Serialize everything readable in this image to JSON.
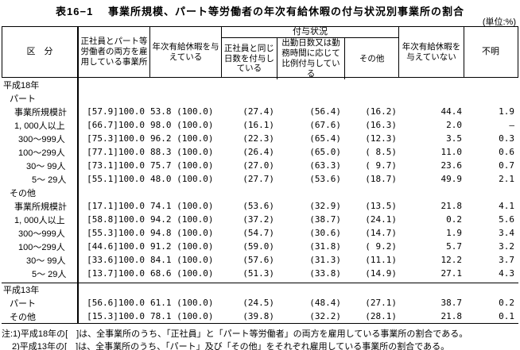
{
  "title": "表16−1　 事業所規模、パート等労働者の年次有給休暇の付与状況別事業所の割合",
  "unit_label": "(単位:%)",
  "table": {
    "headers": {
      "kubun": "区　分",
      "employing_both": "正社員とパート等労働者の両方を雇用している事業所",
      "granting_leave": "年次有給休暇を与えている",
      "grant_status_group": "付与状況",
      "same_days": "正社員と同じ日数を付与している",
      "proportional": "出勤日数又は勤務時間に応じて比例付与している",
      "other": "その他",
      "not_granting": "年次有給休暇を与えていない",
      "unknown": "不明"
    },
    "rows": [
      {
        "label": "平成18年",
        "indent": 0,
        "values": null,
        "section_break": false
      },
      {
        "label": "パート",
        "indent": 1,
        "values": null,
        "section_break": false
      },
      {
        "label": "事業所規模計",
        "indent": 2,
        "values": [
          "[57.9]100.0",
          "53.8 (100.0)",
          "(27.4)",
          "(56.4)",
          "(16.2)",
          "44.4",
          "1.9"
        ],
        "section_break": false
      },
      {
        "label": "1, 000人以上",
        "indent": 2,
        "values": [
          "[66.7]100.0",
          "98.0 (100.0)",
          "(16.1)",
          "(67.6)",
          "(16.3)",
          "2.0",
          "—"
        ],
        "section_break": false
      },
      {
        "label": "300〜999人",
        "indent": 3,
        "values": [
          "[75.3]100.0",
          "96.2 (100.0)",
          "(22.3)",
          "(65.4)",
          "(12.3)",
          "3.5",
          "0.3"
        ],
        "section_break": false
      },
      {
        "label": "100〜299人",
        "indent": 3,
        "values": [
          "[77.1]100.0",
          "88.3 (100.0)",
          "(26.4)",
          "(65.0)",
          "( 8.5)",
          "11.0",
          "0.6"
        ],
        "section_break": false
      },
      {
        "label": "30〜 99人",
        "indent": 4,
        "values": [
          "[73.1]100.0",
          "75.7 (100.0)",
          "(27.0)",
          "(63.3)",
          "( 9.7)",
          "23.6",
          "0.7"
        ],
        "section_break": false
      },
      {
        "label": "5〜 29人",
        "indent": 5,
        "values": [
          "[55.1]100.0",
          "48.0 (100.0)",
          "(27.7)",
          "(53.6)",
          "(18.7)",
          "49.9",
          "2.1"
        ],
        "section_break": false
      },
      {
        "label": "その他",
        "indent": 1,
        "values": null,
        "section_break": false
      },
      {
        "label": "事業所規模計",
        "indent": 2,
        "values": [
          "[17.1]100.0",
          "74.1 (100.0)",
          "(53.6)",
          "(32.9)",
          "(13.5)",
          "21.8",
          "4.1"
        ],
        "section_break": false
      },
      {
        "label": "1, 000人以上",
        "indent": 2,
        "values": [
          "[58.8]100.0",
          "94.2 (100.0)",
          "(37.2)",
          "(38.7)",
          "(24.1)",
          "0.2",
          "5.6"
        ],
        "section_break": false
      },
      {
        "label": "300〜999人",
        "indent": 3,
        "values": [
          "[55.3]100.0",
          "94.8 (100.0)",
          "(54.7)",
          "(30.6)",
          "(14.7)",
          "1.9",
          "3.4"
        ],
        "section_break": false
      },
      {
        "label": "100〜299人",
        "indent": 3,
        "values": [
          "[44.6]100.0",
          "91.2 (100.0)",
          "(59.0)",
          "(31.8)",
          "( 9.2)",
          "5.7",
          "3.2"
        ],
        "section_break": false
      },
      {
        "label": "30〜 99人",
        "indent": 4,
        "values": [
          "[33.6]100.0",
          "84.1 (100.0)",
          "(57.6)",
          "(31.3)",
          "(11.1)",
          "12.2",
          "3.7"
        ],
        "section_break": false
      },
      {
        "label": "5〜 29人",
        "indent": 5,
        "values": [
          "[13.7]100.0",
          "68.6 (100.0)",
          "(51.3)",
          "(33.8)",
          "(14.9)",
          "27.1",
          "4.3"
        ],
        "section_break": false
      },
      {
        "label": "平成13年",
        "indent": 0,
        "values": null,
        "section_break": true
      },
      {
        "label": "パート",
        "indent": 1,
        "values": [
          "[56.6]100.0",
          "61.1 (100.0)",
          "(24.5)",
          "(48.4)",
          "(27.1)",
          "38.7",
          "0.2"
        ],
        "section_break": false
      },
      {
        "label": "その他",
        "indent": 1,
        "values": [
          "[15.3]100.0",
          "78.1 (100.0)",
          "(39.8)",
          "(32.2)",
          "(28.1)",
          "21.8",
          "0.1"
        ],
        "section_break": false
      }
    ]
  },
  "notes": [
    "注:1)平成18年の[　]は、全事業所のうち、「正社員」と「パート等労働者」の両方を雇用している事業所の割合である。",
    "2)平成13年の[　]は、全事業所のうち、「パート」及び「その他」をそれぞれ雇用している事業所の割合である。"
  ]
}
